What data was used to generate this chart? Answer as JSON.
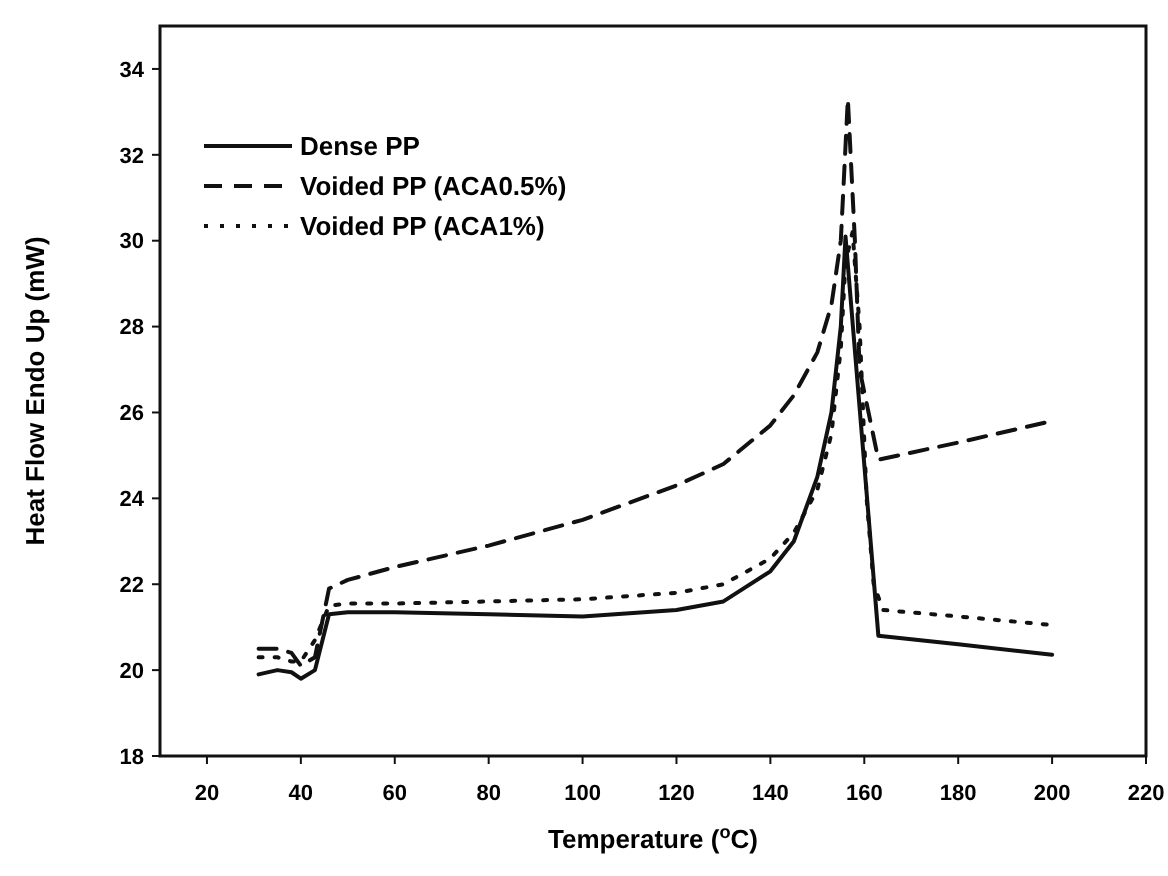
{
  "chart_data": {
    "type": "line",
    "xlabel": "Temperature ($^{o}$C)",
    "ylabel": "Heat Flow Endo Up (mW)",
    "xlim": [
      10,
      220
    ],
    "ylim": [
      18,
      35
    ],
    "xticks": [
      20,
      40,
      60,
      80,
      100,
      120,
      140,
      160,
      180,
      200,
      220
    ],
    "yticks": [
      18,
      20,
      22,
      24,
      26,
      28,
      30,
      32,
      34
    ],
    "grid": false,
    "legend": "top left",
    "series": [
      {
        "name": "Dense PP",
        "color": "#111111",
        "line_style": "solid",
        "x": [
          31,
          35,
          38,
          40,
          43,
          46,
          50,
          60,
          80,
          100,
          120,
          130,
          140,
          145,
          150,
          153,
          155,
          156,
          163,
          180,
          200
        ],
        "values": [
          19.9,
          20.0,
          19.95,
          19.8,
          20.0,
          21.3,
          21.35,
          21.35,
          21.3,
          21.25,
          21.4,
          21.6,
          22.3,
          23.0,
          24.5,
          26.0,
          28.0,
          30.1,
          20.8,
          20.6,
          20.36
        ]
      },
      {
        "name": "Voided PP (ACA0.5%)",
        "color": "#111111",
        "line_style": "dashed",
        "x": [
          31,
          35,
          38,
          40,
          43,
          46,
          50,
          60,
          80,
          100,
          120,
          130,
          140,
          145,
          150,
          153,
          155,
          156.5,
          158,
          159,
          163,
          180,
          200
        ],
        "values": [
          20.5,
          20.5,
          20.4,
          20.1,
          20.3,
          21.9,
          22.1,
          22.4,
          22.9,
          23.5,
          24.3,
          24.8,
          25.7,
          26.4,
          27.4,
          28.5,
          30.0,
          33.3,
          30.0,
          27.0,
          24.9,
          25.3,
          25.8
        ]
      },
      {
        "name": "Voided PP (ACA1%)",
        "color": "#111111",
        "line_style": "dotted",
        "x": [
          31,
          35,
          38,
          40,
          43,
          46,
          50,
          60,
          80,
          100,
          120,
          130,
          140,
          145,
          150,
          153,
          155,
          156,
          157.5,
          159,
          160.5,
          162,
          164,
          180,
          200
        ],
        "values": [
          20.3,
          20.3,
          20.2,
          20.2,
          20.7,
          21.5,
          21.55,
          21.55,
          21.6,
          21.65,
          21.8,
          22.0,
          22.6,
          23.2,
          24.2,
          25.5,
          27.5,
          29.5,
          30.2,
          28.0,
          24.0,
          22.0,
          21.4,
          21.25,
          21.05
        ]
      }
    ]
  }
}
